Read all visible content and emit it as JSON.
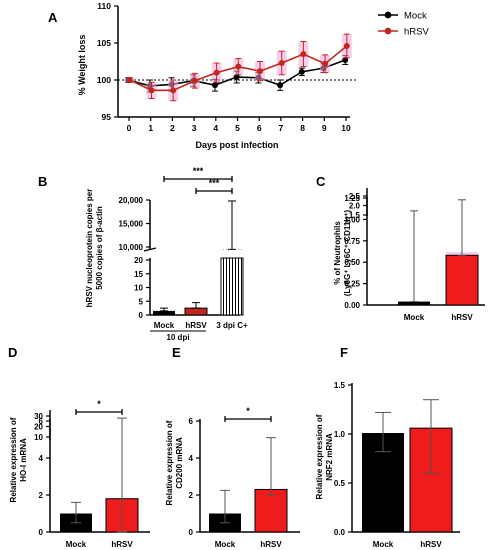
{
  "colors": {
    "mock": "#000000",
    "hrsv": "#c0281e",
    "hrsv_bar": "#ee1c1c",
    "pink": "#f3a6d8"
  },
  "chart_data": [
    {
      "panel": "A",
      "type": "line",
      "ylabel": "% Weight loss",
      "xlabel": "Days post infection",
      "x": [
        0,
        1,
        2,
        3,
        4,
        5,
        6,
        7,
        8,
        9,
        10
      ],
      "xlim": [
        0,
        10
      ],
      "ylim": [
        95,
        110
      ],
      "yticks": [
        95,
        100,
        105,
        110
      ],
      "reference_line": 100,
      "series": [
        {
          "name": "Mock",
          "values": [
            100,
            99.2,
            99.4,
            99.9,
            99.3,
            100.4,
            100.3,
            99.3,
            101.1,
            101.6,
            102.7
          ],
          "errors": [
            0.3,
            0.8,
            0.9,
            0.8,
            0.8,
            0.8,
            0.7,
            0.7,
            0.5,
            0.6,
            0.6
          ]
        },
        {
          "name": "hRSV",
          "values": [
            100,
            98.6,
            98.6,
            99.9,
            101.0,
            101.8,
            101.2,
            102.3,
            103.5,
            102.2,
            104.6
          ],
          "errors": [
            0.3,
            1.1,
            1.4,
            1.0,
            1.3,
            1.1,
            1.3,
            1.6,
            1.7,
            1.2,
            1.6
          ]
        }
      ]
    },
    {
      "panel": "B",
      "type": "bar",
      "ylabel": "hRSV nucleprotein copies per 5000 copies of β-actin",
      "categories": [
        "Mock",
        "hRSV",
        "3 dpi C+"
      ],
      "group_label": "10 dpi",
      "values": [
        1.5,
        2.5,
        9500
      ],
      "err_high": [
        2.5,
        4.5,
        19800
      ],
      "yticks_lower": [
        0,
        5,
        10,
        15,
        20
      ],
      "yticks_upper": [
        "10,000",
        "15,000",
        "20,000"
      ],
      "significance": [
        {
          "from": "Mock",
          "to": "3 dpi C+",
          "label": "***"
        },
        {
          "from": "hRSV",
          "to": "3 dpi C+",
          "label": "***"
        }
      ]
    },
    {
      "panel": "C",
      "type": "bar",
      "ylabel": "% of Neutrophils (Ly6G⁺ Ly6C⁺ CD11b⁺)",
      "categories": [
        "Mock",
        "hRSV"
      ],
      "values": [
        0.04,
        0.58
      ],
      "err_high": [
        1.1,
        2.3
      ],
      "yticks_lower": [
        "0.00",
        "0.25",
        "0.50",
        "0.75",
        "1.00",
        "1.25"
      ],
      "yticks_upper": [
        "1.5",
        "2.0",
        "2.5"
      ]
    },
    {
      "panel": "D",
      "type": "bar",
      "ylabel": "Relative expression of HO-I mRNA",
      "categories": [
        "Mock",
        "hRSV"
      ],
      "values": [
        1.0,
        1.8
      ],
      "err_low": [
        0.5,
        0.0
      ],
      "err_high": [
        1.6,
        28
      ],
      "yticks_lower": [
        "0",
        "2",
        "4",
        "6"
      ],
      "yticks_upper": [
        "10",
        "20",
        "30"
      ],
      "significance": [
        {
          "from": "Mock",
          "to": "hRSV",
          "label": "*"
        }
      ]
    },
    {
      "panel": "E",
      "type": "bar",
      "ylabel": "Relative expression of CD200 mRNA",
      "categories": [
        "Mock",
        "hRSV"
      ],
      "values": [
        1.0,
        2.3
      ],
      "err_low": [
        0.5,
        2.0
      ],
      "err_high": [
        2.25,
        5.1
      ],
      "ylim": [
        0,
        6
      ],
      "yticks": [
        "0",
        "2",
        "4",
        "6"
      ],
      "significance": [
        {
          "from": "Mock",
          "to": "hRSV",
          "label": "*"
        }
      ]
    },
    {
      "panel": "F",
      "type": "bar",
      "ylabel": "Relative expression of NRF2 mRNA",
      "categories": [
        "Mock",
        "hRSV"
      ],
      "values": [
        1.01,
        1.06
      ],
      "err_low": [
        0.82,
        0.6
      ],
      "err_high": [
        1.22,
        1.35
      ],
      "ylim": [
        0,
        1.5
      ],
      "yticks": [
        "0.0",
        "0.5",
        "1.0",
        "1.5"
      ]
    }
  ]
}
